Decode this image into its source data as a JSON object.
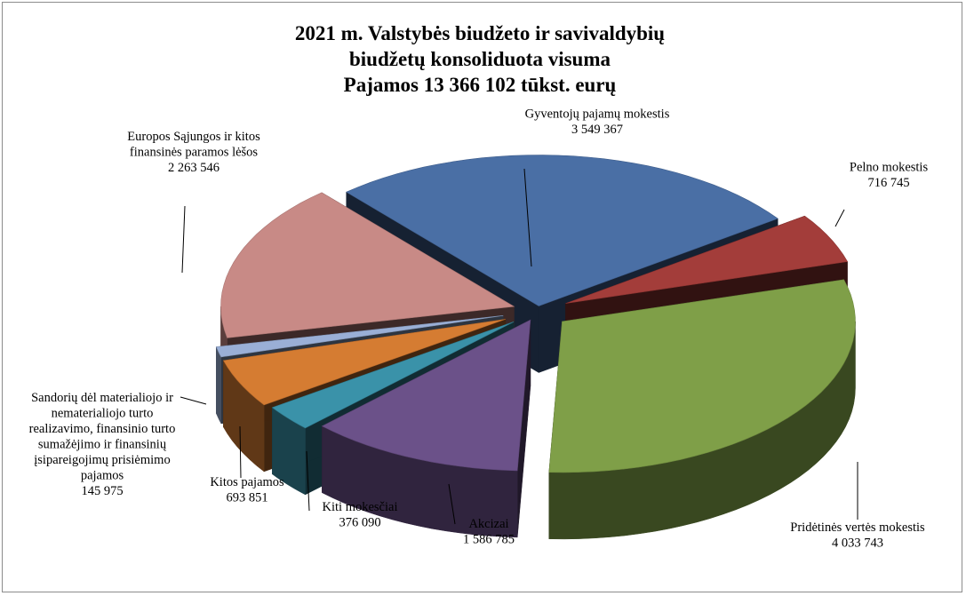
{
  "chart_data": {
    "type": "pie",
    "title": "2021 m. Valstybės biudžeto ir savivaldybių biudžetų konsoliduota visuma",
    "title_lines": [
      "2021 m. Valstybės biudžeto ir savivaldybių",
      "biudžetų konsoliduota visuma",
      "Pajamos 13 366 102 tūkst. eurų"
    ],
    "total": 13366102,
    "style": "3d-exploded",
    "slices": [
      {
        "name": "Gyventojų pajamų mokestis",
        "value": 3549367,
        "value_label": "3 549 367",
        "label_lines": [
          "Gyventojų pajamų mokestis"
        ],
        "color": "#4a6fa5"
      },
      {
        "name": "Pelno mokestis",
        "value": 716745,
        "value_label": "716 745",
        "label_lines": [
          "Pelno mokestis"
        ],
        "color": "#a33d3a"
      },
      {
        "name": "Pridėtinės vertės mokestis",
        "value": 4033743,
        "value_label": "4 033 743",
        "label_lines": [
          "Pridėtinės vertės mokestis"
        ],
        "color": "#7f9f48"
      },
      {
        "name": "Akcizai",
        "value": 1586785,
        "value_label": "1 586 785",
        "label_lines": [
          "Akcizai"
        ],
        "color": "#6b5189"
      },
      {
        "name": "Kiti mokesčiai",
        "value": 376090,
        "value_label": "376 090",
        "label_lines": [
          "Kiti mokesčiai"
        ],
        "color": "#3a92a9"
      },
      {
        "name": "Kitos pajamos",
        "value": 693851,
        "value_label": "693 851",
        "label_lines": [
          "Kitos pajamos"
        ],
        "color": "#d57c32"
      },
      {
        "name": "Sandorių dėl materialiojo ir nematerialiojo turto realizavimo, finansinio turto sumažėjimo ir finansinių įsipareigojimų prisiėmimo pajamos",
        "value": 145975,
        "value_label": "145 975",
        "label_lines": [
          "Sandorių dėl materialiojo ir",
          "nematerialiojo turto",
          "realizavimo, finansinio turto",
          "sumažėjimo ir finansinių",
          "įsipareigojimų prisiėmimo",
          "pajamos"
        ],
        "color": "#9aafd6"
      },
      {
        "name": "Europos Sąjungos ir kitos finansinės paramos lėšos",
        "value": 2263546,
        "value_label": "2 263 546",
        "label_lines": [
          "Europos Sąjungos ir kitos",
          "finansinės paramos lėšos"
        ],
        "color": "#c88a86"
      }
    ]
  }
}
